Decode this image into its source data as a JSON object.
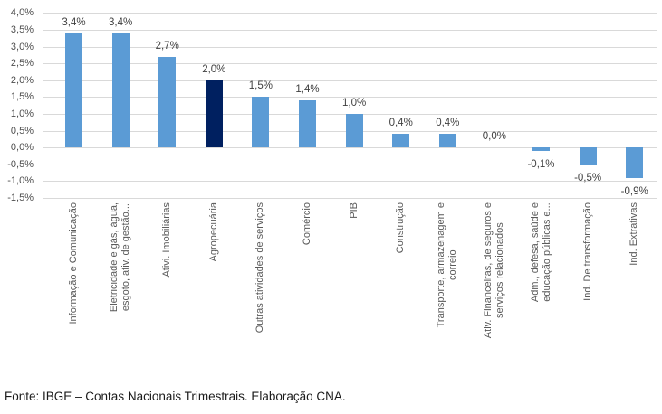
{
  "footer": {
    "source_text": "Fonte: IBGE – Contas Nacionais Trimestrais. Elaboração CNA."
  },
  "colors": {
    "bar_default": "#5B9BD5",
    "bar_highlight": "#002060",
    "gridline": "#D9D9D9",
    "axis_text": "#595959",
    "data_label_text": "#404040"
  },
  "chart_data": {
    "type": "bar",
    "title": "",
    "xlabel": "",
    "ylabel": "",
    "ylim": [
      -1.5,
      4.0
    ],
    "y_tick_step": 0.5,
    "grid": true,
    "legend": false,
    "y_tick_labels": [
      "4,0%",
      "3,5%",
      "3,0%",
      "2,5%",
      "2,0%",
      "1,5%",
      "1,0%",
      "0,5%",
      "0,0%",
      "-0,5%",
      "-1,0%",
      "-1,5%"
    ],
    "highlight_index": 3,
    "bars": [
      {
        "category_lines": [
          "Informação e Comunicação"
        ],
        "value": 3.4,
        "label": "3,4%"
      },
      {
        "category_lines": [
          "Eletricidade e gás, água,",
          "esgoto, ativ. de gestão..."
        ],
        "value": 3.4,
        "label": "3,4%"
      },
      {
        "category_lines": [
          "Ativi. Imobiliárias"
        ],
        "value": 2.7,
        "label": "2,7%"
      },
      {
        "category_lines": [
          "Agropecuária"
        ],
        "value": 2.0,
        "label": "2,0%",
        "highlight": true
      },
      {
        "category_lines": [
          "Outras atividades de serviços"
        ],
        "value": 1.5,
        "label": "1,5%"
      },
      {
        "category_lines": [
          "Comércio"
        ],
        "value": 1.4,
        "label": "1,4%"
      },
      {
        "category_lines": [
          "PIB"
        ],
        "value": 1.0,
        "label": "1,0%"
      },
      {
        "category_lines": [
          "Construção"
        ],
        "value": 0.4,
        "label": "0,4%"
      },
      {
        "category_lines": [
          "Transporte, armazenagem e",
          "correio"
        ],
        "value": 0.4,
        "label": "0,4%"
      },
      {
        "category_lines": [
          "Ativ. Financeiras, de seguros e",
          "serviços relacionados"
        ],
        "value": 0.0,
        "label": "0,0%"
      },
      {
        "category_lines": [
          "Adm., defesa, saúde e",
          "educação públicas e..."
        ],
        "value": -0.1,
        "label": "-0,1%"
      },
      {
        "category_lines": [
          "Ind. De transformação"
        ],
        "value": -0.5,
        "label": "-0,5%"
      },
      {
        "category_lines": [
          "Ind. Extrativas"
        ],
        "value": -0.9,
        "label": "-0,9%"
      }
    ]
  }
}
